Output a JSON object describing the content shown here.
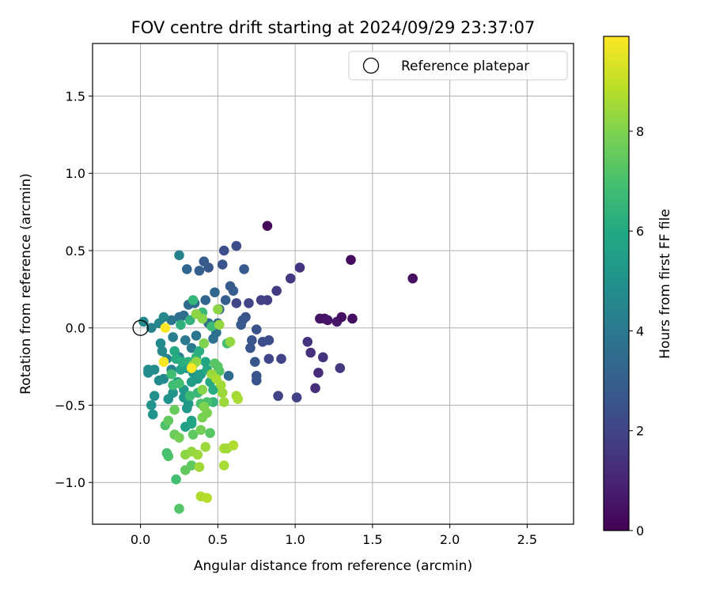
{
  "chart_data": {
    "type": "scatter",
    "title": "FOV centre drift starting at 2024/09/29 23:37:07",
    "xlabel": "Angular distance from reference (arcmin)",
    "ylabel": "Rotation from reference (arcmin)",
    "xlim": [
      -0.31,
      2.8
    ],
    "ylim": [
      -1.27,
      1.84
    ],
    "xticks": [
      0.0,
      0.5,
      1.0,
      1.5,
      2.0,
      2.5
    ],
    "xtick_labels": [
      "0.0",
      "0.5",
      "1.0",
      "1.5",
      "2.0",
      "2.5"
    ],
    "yticks": [
      -1.0,
      -0.5,
      0.0,
      0.5,
      1.0,
      1.5
    ],
    "ytick_labels": [
      "−1.0",
      "−0.5",
      "0.0",
      "0.5",
      "1.0",
      "1.5"
    ],
    "grid": true,
    "legend": {
      "position": "top-right",
      "entries": [
        "Reference platepar"
      ]
    },
    "reference_point": {
      "x": 0.0,
      "y": 0.0
    },
    "colorbar": {
      "label": "Hours from first FF file",
      "colormap": "viridis",
      "range": [
        0,
        9.9
      ],
      "ticks": [
        0,
        2,
        4,
        6,
        8
      ],
      "tick_labels": [
        "0",
        "2",
        "4",
        "6",
        "8"
      ]
    },
    "points": [
      {
        "x": 0.82,
        "y": 0.66,
        "c": 0.2
      },
      {
        "x": 1.36,
        "y": 0.44,
        "c": 0.3
      },
      {
        "x": 1.76,
        "y": 0.32,
        "c": 0.4
      },
      {
        "x": 1.16,
        "y": 0.06,
        "c": 0.5
      },
      {
        "x": 1.19,
        "y": 0.06,
        "c": 0.55
      },
      {
        "x": 1.21,
        "y": 0.05,
        "c": 0.6
      },
      {
        "x": 1.27,
        "y": 0.04,
        "c": 0.7
      },
      {
        "x": 1.3,
        "y": 0.07,
        "c": 0.45
      },
      {
        "x": 1.37,
        "y": 0.06,
        "c": 0.35
      },
      {
        "x": 1.03,
        "y": 0.39,
        "c": 1.5
      },
      {
        "x": 0.97,
        "y": 0.32,
        "c": 1.6
      },
      {
        "x": 0.88,
        "y": 0.24,
        "c": 1.7
      },
      {
        "x": 0.82,
        "y": 0.18,
        "c": 1.8
      },
      {
        "x": 0.78,
        "y": 0.18,
        "c": 1.9
      },
      {
        "x": 0.7,
        "y": 0.16,
        "c": 2.0
      },
      {
        "x": 0.62,
        "y": 0.16,
        "c": 2.1
      },
      {
        "x": 1.08,
        "y": -0.09,
        "c": 1.5
      },
      {
        "x": 1.1,
        "y": -0.16,
        "c": 1.4
      },
      {
        "x": 1.18,
        "y": -0.19,
        "c": 1.5
      },
      {
        "x": 1.15,
        "y": -0.29,
        "c": 1.2
      },
      {
        "x": 1.29,
        "y": -0.26,
        "c": 1.6
      },
      {
        "x": 1.13,
        "y": -0.39,
        "c": 1.3
      },
      {
        "x": 1.01,
        "y": -0.45,
        "c": 1.9
      },
      {
        "x": 0.89,
        "y": -0.44,
        "c": 2.0
      },
      {
        "x": 0.91,
        "y": -0.2,
        "c": 2.0
      },
      {
        "x": 0.83,
        "y": -0.2,
        "c": 2.1
      },
      {
        "x": 0.83,
        "y": -0.08,
        "c": 2.3
      },
      {
        "x": 0.79,
        "y": -0.09,
        "c": 2.4
      },
      {
        "x": 0.75,
        "y": -0.01,
        "c": 2.5
      },
      {
        "x": 0.72,
        "y": -0.08,
        "c": 2.6
      },
      {
        "x": 0.71,
        "y": -0.13,
        "c": 2.6
      },
      {
        "x": 0.74,
        "y": -0.22,
        "c": 2.7
      },
      {
        "x": 0.75,
        "y": -0.31,
        "c": 2.6
      },
      {
        "x": 0.75,
        "y": -0.34,
        "c": 2.6
      },
      {
        "x": 0.62,
        "y": 0.53,
        "c": 2.3
      },
      {
        "x": 0.54,
        "y": 0.5,
        "c": 2.4
      },
      {
        "x": 0.53,
        "y": 0.41,
        "c": 2.6
      },
      {
        "x": 0.44,
        "y": 0.39,
        "c": 2.7
      },
      {
        "x": 0.41,
        "y": 0.43,
        "c": 2.8
      },
      {
        "x": 0.38,
        "y": 0.37,
        "c": 3.0
      },
      {
        "x": 0.3,
        "y": 0.38,
        "c": 3.2
      },
      {
        "x": 0.58,
        "y": 0.27,
        "c": 2.9
      },
      {
        "x": 0.6,
        "y": 0.24,
        "c": 2.9
      },
      {
        "x": 0.67,
        "y": 0.38,
        "c": 2.8
      },
      {
        "x": 0.68,
        "y": 0.07,
        "c": 2.6
      },
      {
        "x": 0.66,
        "y": 0.05,
        "c": 2.7
      },
      {
        "x": 0.65,
        "y": 0.02,
        "c": 2.8
      },
      {
        "x": 0.55,
        "y": 0.18,
        "c": 3.0
      },
      {
        "x": 0.51,
        "y": 0.12,
        "c": 3.1
      },
      {
        "x": 0.48,
        "y": 0.23,
        "c": 3.3
      },
      {
        "x": 0.42,
        "y": 0.18,
        "c": 3.2
      },
      {
        "x": 0.35,
        "y": 0.16,
        "c": 3.4
      },
      {
        "x": 0.31,
        "y": 0.15,
        "c": 3.4
      },
      {
        "x": 0.28,
        "y": 0.08,
        "c": 3.5
      },
      {
        "x": 0.25,
        "y": 0.07,
        "c": 3.6
      },
      {
        "x": 0.2,
        "y": 0.05,
        "c": 3.8
      },
      {
        "x": 0.5,
        "y": 0.03,
        "c": 3.5
      },
      {
        "x": 0.44,
        "y": 0.03,
        "c": 3.5
      },
      {
        "x": 0.49,
        "y": -0.03,
        "c": 3.6
      },
      {
        "x": 0.47,
        "y": -0.07,
        "c": 3.7
      },
      {
        "x": 0.57,
        "y": -0.31,
        "c": 3.4
      },
      {
        "x": 0.36,
        "y": -0.05,
        "c": 3.9
      },
      {
        "x": 0.29,
        "y": -0.08,
        "c": 4.0
      },
      {
        "x": 0.33,
        "y": -0.13,
        "c": 4.1
      },
      {
        "x": 0.25,
        "y": 0.47,
        "c": 4.4
      },
      {
        "x": 0.21,
        "y": -0.06,
        "c": 4.2
      },
      {
        "x": 0.25,
        "y": -0.19,
        "c": 4.3
      },
      {
        "x": 0.17,
        "y": -0.2,
        "c": 4.4
      },
      {
        "x": 0.2,
        "y": -0.27,
        "c": 4.4
      },
      {
        "x": 0.15,
        "y": -0.33,
        "c": 4.5
      },
      {
        "x": 0.15,
        "y": 0.07,
        "c": 4.6
      },
      {
        "x": 0.12,
        "y": 0.03,
        "c": 4.5
      },
      {
        "x": 0.07,
        "y": 0.0,
        "c": 4.4
      },
      {
        "x": 0.02,
        "y": 0.04,
        "c": 4.6
      },
      {
        "x": 0.05,
        "y": -0.27,
        "c": 4.7
      },
      {
        "x": 0.05,
        "y": -0.29,
        "c": 4.8
      },
      {
        "x": 0.09,
        "y": -0.27,
        "c": 4.8
      },
      {
        "x": 0.12,
        "y": -0.34,
        "c": 4.7
      },
      {
        "x": 0.14,
        "y": -0.15,
        "c": 4.6
      },
      {
        "x": 0.13,
        "y": -0.1,
        "c": 4.7
      },
      {
        "x": 0.09,
        "y": -0.44,
        "c": 4.9
      },
      {
        "x": 0.07,
        "y": -0.5,
        "c": 5.0
      },
      {
        "x": 0.08,
        "y": -0.56,
        "c": 5.1
      },
      {
        "x": 0.18,
        "y": -0.46,
        "c": 5.0
      },
      {
        "x": 0.21,
        "y": -0.42,
        "c": 5.1
      },
      {
        "x": 0.28,
        "y": -0.45,
        "c": 5.2
      },
      {
        "x": 0.3,
        "y": -0.52,
        "c": 5.2
      },
      {
        "x": 0.31,
        "y": -0.49,
        "c": 5.3
      },
      {
        "x": 0.28,
        "y": -0.4,
        "c": 5.3
      },
      {
        "x": 0.3,
        "y": -0.26,
        "c": 5.2
      },
      {
        "x": 0.34,
        "y": -0.29,
        "c": 5.3
      },
      {
        "x": 0.37,
        "y": -0.33,
        "c": 5.4
      },
      {
        "x": 0.39,
        "y": -0.3,
        "c": 5.5
      },
      {
        "x": 0.33,
        "y": -0.35,
        "c": 5.4
      },
      {
        "x": 0.24,
        "y": -0.35,
        "c": 5.5
      },
      {
        "x": 0.29,
        "y": -0.64,
        "c": 5.6
      },
      {
        "x": 0.33,
        "y": -0.6,
        "c": 5.7
      },
      {
        "x": 0.33,
        "y": -0.62,
        "c": 5.8
      },
      {
        "x": 0.26,
        "y": -0.27,
        "c": 5.7
      },
      {
        "x": 0.42,
        "y": -0.22,
        "c": 5.9
      },
      {
        "x": 0.43,
        "y": -0.27,
        "c": 6.0
      },
      {
        "x": 0.45,
        "y": -0.35,
        "c": 6.0
      },
      {
        "x": 0.47,
        "y": -0.4,
        "c": 6.1
      },
      {
        "x": 0.22,
        "y": -0.15,
        "c": 6.0
      },
      {
        "x": 0.23,
        "y": -0.2,
        "c": 6.1
      },
      {
        "x": 0.27,
        "y": -0.22,
        "c": 6.2
      },
      {
        "x": 0.31,
        "y": -0.22,
        "c": 6.3
      },
      {
        "x": 0.36,
        "y": -0.19,
        "c": 6.4
      },
      {
        "x": 0.38,
        "y": -0.15,
        "c": 6.2
      },
      {
        "x": 0.26,
        "y": 0.02,
        "c": 6.3
      },
      {
        "x": 0.32,
        "y": 0.05,
        "c": 6.4
      },
      {
        "x": 0.34,
        "y": 0.18,
        "c": 6.5
      },
      {
        "x": 0.4,
        "y": 0.1,
        "c": 6.6
      },
      {
        "x": 0.46,
        "y": 0.01,
        "c": 6.7
      },
      {
        "x": 0.56,
        "y": -0.1,
        "c": 6.9
      },
      {
        "x": 0.47,
        "y": -0.48,
        "c": 6.5
      },
      {
        "x": 0.37,
        "y": -0.42,
        "c": 6.6
      },
      {
        "x": 0.32,
        "y": -0.44,
        "c": 6.7
      },
      {
        "x": 0.21,
        "y": -0.37,
        "c": 6.8
      },
      {
        "x": 0.2,
        "y": -0.3,
        "c": 6.8
      },
      {
        "x": 0.25,
        "y": -0.36,
        "c": 6.9
      },
      {
        "x": 0.39,
        "y": -0.49,
        "c": 7.0
      },
      {
        "x": 0.43,
        "y": -0.48,
        "c": 7.0
      },
      {
        "x": 0.51,
        "y": -0.28,
        "c": 7.2
      },
      {
        "x": 0.48,
        "y": -0.23,
        "c": 7.3
      },
      {
        "x": 0.5,
        "y": -0.25,
        "c": 7.3
      },
      {
        "x": 0.34,
        "y": -0.69,
        "c": 7.4
      },
      {
        "x": 0.45,
        "y": -0.68,
        "c": 7.3
      },
      {
        "x": 0.23,
        "y": -0.98,
        "c": 6.9
      },
      {
        "x": 0.29,
        "y": -0.92,
        "c": 7.5
      },
      {
        "x": 0.33,
        "y": -0.89,
        "c": 7.4
      },
      {
        "x": 0.25,
        "y": -1.17,
        "c": 7.2
      },
      {
        "x": 0.18,
        "y": -0.83,
        "c": 7.1
      },
      {
        "x": 0.17,
        "y": -0.81,
        "c": 7.0
      },
      {
        "x": 0.16,
        "y": -0.63,
        "c": 7.1
      },
      {
        "x": 0.18,
        "y": -0.6,
        "c": 7.5
      },
      {
        "x": 0.22,
        "y": -0.53,
        "c": 7.6
      },
      {
        "x": 0.22,
        "y": -0.69,
        "c": 7.6
      },
      {
        "x": 0.25,
        "y": -0.71,
        "c": 7.8
      },
      {
        "x": 0.39,
        "y": -0.66,
        "c": 7.8
      },
      {
        "x": 0.4,
        "y": -0.58,
        "c": 7.9
      },
      {
        "x": 0.43,
        "y": -0.55,
        "c": 7.9
      },
      {
        "x": 0.41,
        "y": -0.51,
        "c": 8.0
      },
      {
        "x": 0.4,
        "y": -0.4,
        "c": 8.1
      },
      {
        "x": 0.34,
        "y": -0.24,
        "c": 8.2
      },
      {
        "x": 0.36,
        "y": -0.22,
        "c": 8.3
      },
      {
        "x": 0.41,
        "y": -0.1,
        "c": 8.0
      },
      {
        "x": 0.4,
        "y": 0.06,
        "c": 8.1
      },
      {
        "x": 0.36,
        "y": 0.09,
        "c": 8.2
      },
      {
        "x": 0.51,
        "y": 0.02,
        "c": 8.3
      },
      {
        "x": 0.5,
        "y": 0.12,
        "c": 8.2
      },
      {
        "x": 0.58,
        "y": -0.09,
        "c": 8.3
      },
      {
        "x": 0.53,
        "y": -0.42,
        "c": 8.4
      },
      {
        "x": 0.54,
        "y": -0.48,
        "c": 8.4
      },
      {
        "x": 0.62,
        "y": -0.44,
        "c": 8.5
      },
      {
        "x": 0.63,
        "y": -0.46,
        "c": 8.6
      },
      {
        "x": 0.52,
        "y": -0.37,
        "c": 8.5
      },
      {
        "x": 0.46,
        "y": -0.3,
        "c": 8.4
      },
      {
        "x": 0.49,
        "y": -0.33,
        "c": 8.6
      },
      {
        "x": 0.29,
        "y": -0.82,
        "c": 8.2
      },
      {
        "x": 0.33,
        "y": -0.8,
        "c": 8.3
      },
      {
        "x": 0.37,
        "y": -0.82,
        "c": 8.4
      },
      {
        "x": 0.38,
        "y": -0.9,
        "c": 8.5
      },
      {
        "x": 0.42,
        "y": -0.77,
        "c": 8.4
      },
      {
        "x": 0.54,
        "y": -0.78,
        "c": 8.6
      },
      {
        "x": 0.56,
        "y": -0.78,
        "c": 8.5
      },
      {
        "x": 0.6,
        "y": -0.76,
        "c": 8.7
      },
      {
        "x": 0.54,
        "y": -0.89,
        "c": 8.6
      },
      {
        "x": 0.39,
        "y": -1.09,
        "c": 8.7
      },
      {
        "x": 0.43,
        "y": -1.1,
        "c": 8.8
      },
      {
        "x": 0.16,
        "y": 0.0,
        "c": 9.9
      },
      {
        "x": 0.15,
        "y": -0.22,
        "c": 9.8
      },
      {
        "x": 0.33,
        "y": -0.26,
        "c": 9.9
      }
    ]
  }
}
